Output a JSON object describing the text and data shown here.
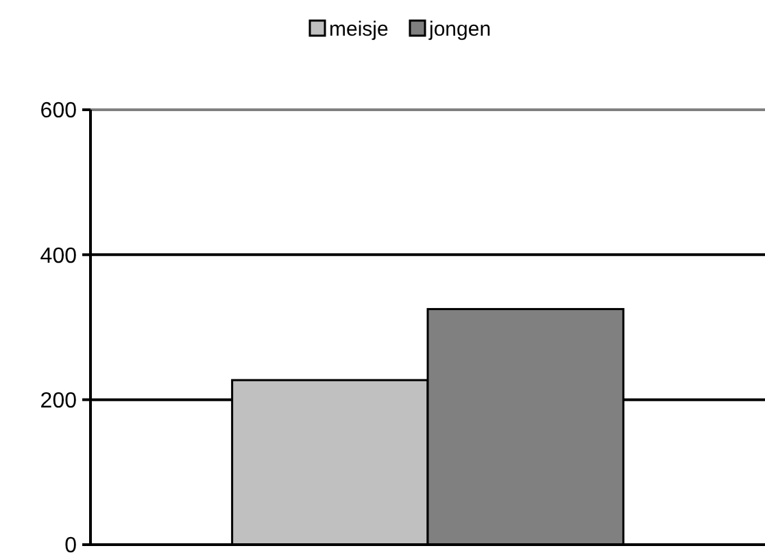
{
  "chart_data": {
    "type": "bar",
    "categories": [
      null
    ],
    "series": [
      {
        "name": "meisje",
        "color": "#c0c0c0",
        "values": [
          227
        ]
      },
      {
        "name": "jongen",
        "color": "#808080",
        "values": [
          325
        ]
      }
    ],
    "ylim": [
      0,
      600
    ],
    "yticks": [
      0,
      200,
      400,
      600
    ],
    "grid": "y",
    "legend": "top"
  }
}
